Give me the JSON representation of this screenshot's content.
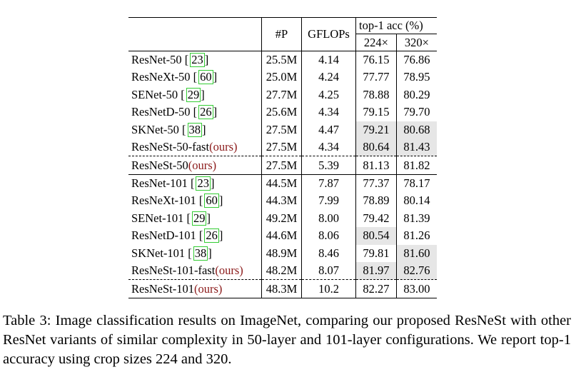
{
  "table": {
    "headers": {
      "params": "#P",
      "gflops": "GFLOPs",
      "top1": "top-1 acc (%)",
      "crop224": "224×",
      "crop320": "320×"
    },
    "groups": [
      {
        "rows": [
          {
            "prefix": "ResNet-50 [",
            "ref": "23",
            "suffix": "]",
            "p": "25.5M",
            "g": "4.14",
            "a224": "76.15",
            "a320": "76.86"
          },
          {
            "prefix": "ResNeXt-50 [",
            "ref": "60",
            "suffix": "]",
            "p": "25.0M",
            "g": "4.24",
            "a224": "77.77",
            "a320": "78.95"
          },
          {
            "prefix": "SENet-50 [",
            "ref": "29",
            "suffix": "]",
            "p": "27.7M",
            "g": "4.25",
            "a224": "78.88",
            "a320": "80.29"
          },
          {
            "prefix": "ResNetD-50 [",
            "ref": "26",
            "suffix": "]",
            "p": "25.6M",
            "g": "4.34",
            "a224": "79.15",
            "a320": "79.70"
          },
          {
            "prefix": "SKNet-50 [",
            "ref": "38",
            "suffix": "]",
            "p": "27.5M",
            "g": "4.47",
            "a224": "79.21",
            "a320": "80.68"
          },
          {
            "prefix": "ResNeSt-50-fast",
            "ours": "(ours)",
            "p": "27.5M",
            "g": "4.34",
            "a224": "80.64",
            "a320": "81.43"
          },
          {
            "prefix": "ResNeSt-50",
            "ours": "(ours)",
            "p": "27.5M",
            "g": "5.39",
            "a224": "81.13",
            "a320": "81.82"
          }
        ]
      },
      {
        "rows": [
          {
            "prefix": "ResNet-101 [",
            "ref": "23",
            "suffix": "]",
            "p": "44.5M",
            "g": "7.87",
            "a224": "77.37",
            "a320": "78.17"
          },
          {
            "prefix": "ResNeXt-101 [",
            "ref": "60",
            "suffix": "]",
            "p": "44.3M",
            "g": "7.99",
            "a224": "78.89",
            "a320": "80.14"
          },
          {
            "prefix": "SENet-101 [",
            "ref": "29",
            "suffix": "]",
            "p": "49.2M",
            "g": "8.00",
            "a224": "79.42",
            "a320": "81.39"
          },
          {
            "prefix": "ResNetD-101 [",
            "ref": "26",
            "suffix": "]",
            "p": "44.6M",
            "g": "8.06",
            "a224": "80.54",
            "a320": "81.26"
          },
          {
            "prefix": "SKNet-101 [",
            "ref": "38",
            "suffix": "]",
            "p": "48.9M",
            "g": "8.46",
            "a224": "79.81",
            "a320": "81.60"
          },
          {
            "prefix": "ResNeSt-101-fast",
            "ours": "(ours)",
            "p": "48.2M",
            "g": "8.07",
            "a224": "81.97",
            "a320": "82.76"
          },
          {
            "prefix": "ResNeSt-101",
            "ours": "(ours)",
            "p": "48.3M",
            "g": "10.2",
            "a224": "82.27",
            "a320": "83.00"
          }
        ]
      }
    ]
  },
  "caption": "Table 3: Image classification results on ImageNet, comparing our proposed ResNeSt with other ResNet variants of similar complexity in 50-layer and 101-layer configurations. We report top-1 accuracy using crop sizes 224 and 320.",
  "colors": {
    "highlight": "#e6e6e6",
    "citation_box": "#33cc33",
    "ours_text": "#8b1a1a"
  }
}
